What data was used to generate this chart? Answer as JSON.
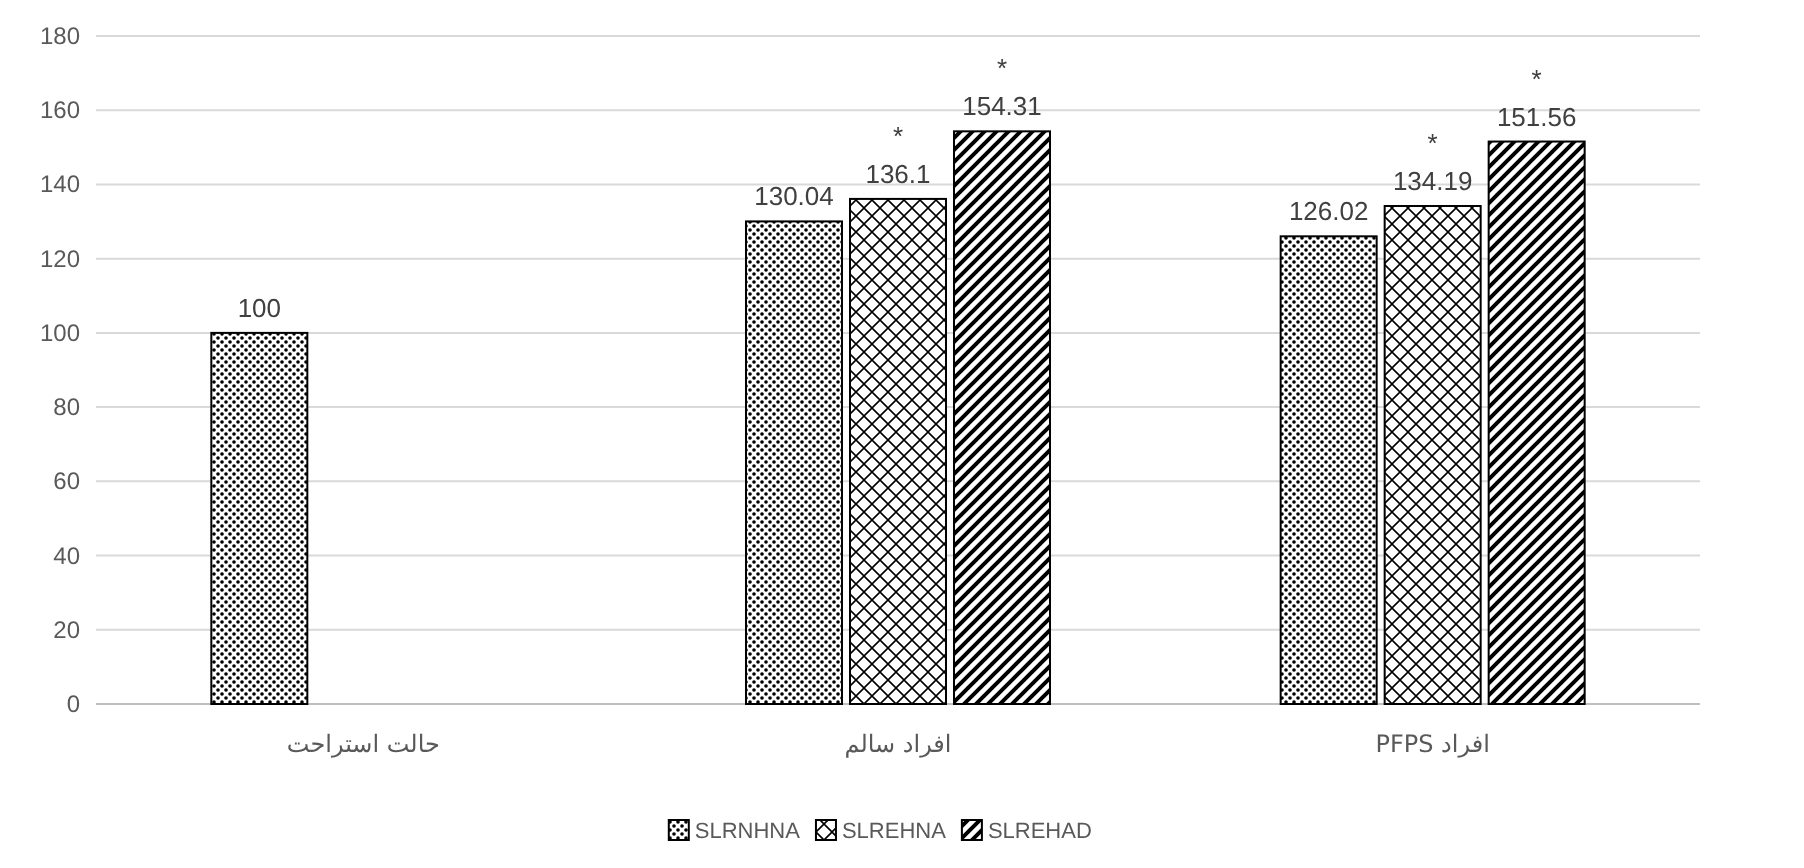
{
  "chart_data": {
    "type": "bar",
    "categories": [
      "حالت استراحت",
      "افراد سالم",
      "افراد PFPS"
    ],
    "series": [
      {
        "name": "SLRNHNA",
        "color": "#000000",
        "values": [
          100,
          130.04,
          126.02
        ]
      },
      {
        "name": "SLREHNA",
        "color": "#000000",
        "values": [
          null,
          136.1,
          134.19
        ]
      },
      {
        "name": "SLREHAD",
        "color": "#000000",
        "values": [
          null,
          154.31,
          151.56
        ]
      }
    ],
    "ylim": [
      0,
      180
    ],
    "yticks": [
      0,
      20,
      40,
      60,
      80,
      100,
      120,
      140,
      160,
      180
    ],
    "grid": "y",
    "legend": "bottom",
    "data_labels": true,
    "annotations": [
      "*",
      "*",
      "*",
      "*"
    ]
  }
}
